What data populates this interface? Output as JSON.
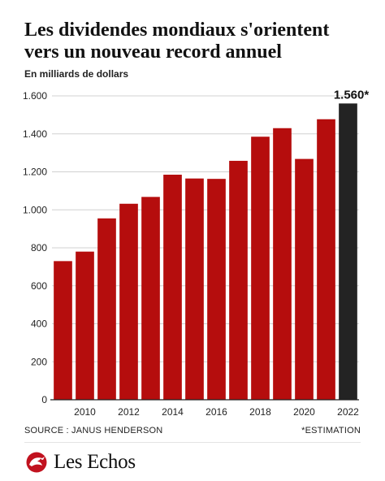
{
  "title": "Les dividendes mondiaux s'orientent vers un nouveau record annuel",
  "colors": {
    "bar": "#b50d0d",
    "bar_highlight": "#232323",
    "grid": "#d0d0d0",
    "axis": "#222222"
  },
  "chart_data": {
    "type": "bar",
    "title": "Les dividendes mondiaux s'orientent vers un nouveau record annuel",
    "subtitle": "En milliards de dollars",
    "categories": [
      "2009",
      "2010",
      "2011",
      "2012",
      "2013",
      "2014",
      "2015",
      "2016",
      "2017",
      "2018",
      "2019",
      "2020",
      "2021",
      "2022"
    ],
    "values": [
      730,
      780,
      955,
      1032,
      1068,
      1185,
      1165,
      1163,
      1258,
      1385,
      1430,
      1268,
      1477,
      1560
    ],
    "highlight_index": 13,
    "highlight_label": "1.560*",
    "xlabel": "",
    "ylabel": "",
    "x_tick_labels": [
      "2010",
      "2012",
      "2014",
      "2016",
      "2018",
      "2020",
      "2022"
    ],
    "y_ticks": [
      0,
      200,
      400,
      600,
      800,
      1000,
      1200,
      1400,
      1600
    ],
    "y_tick_labels": [
      "0",
      "200",
      "400",
      "600",
      "800",
      "1.000",
      "1.200",
      "1.400",
      "1.600"
    ],
    "ylim": [
      0,
      1600
    ],
    "grid": true
  },
  "footer": {
    "source": "SOURCE : JANUS HENDERSON",
    "note": "*ESTIMATION",
    "logo_text": "Les Echos",
    "logo_icon": "les-echos-dragon-icon"
  }
}
